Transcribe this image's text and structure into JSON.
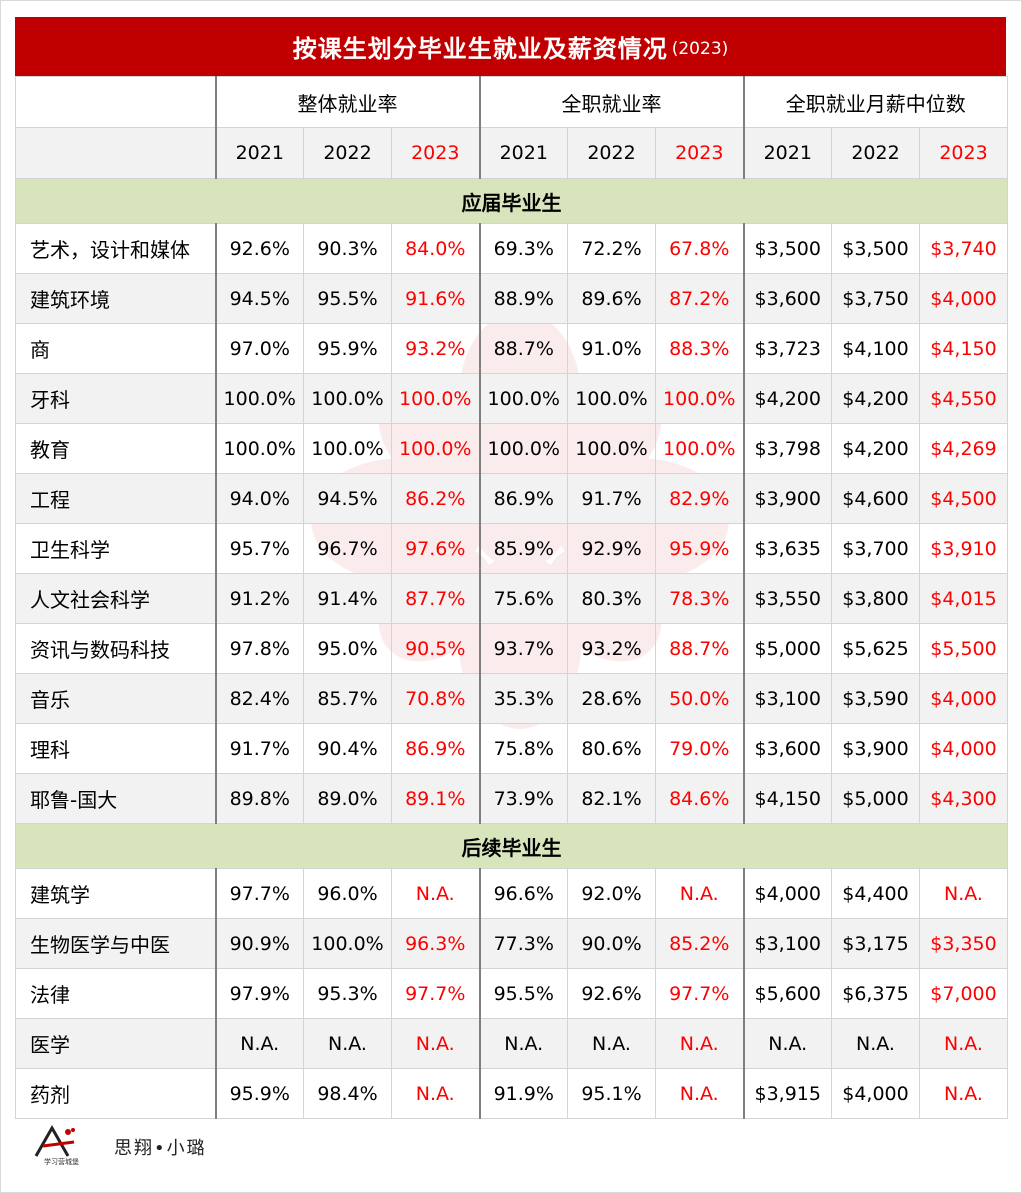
{
  "title": {
    "main": "按课生划分毕业生就业及薪资情况",
    "year": "(2023)"
  },
  "groups": [
    "整体就业率",
    "全职就业率",
    "全职就业月薪中位数"
  ],
  "years": [
    "2021",
    "2022",
    "2023"
  ],
  "sections": [
    {
      "name": "应届毕业生",
      "rows": [
        {
          "label": "艺术，设计和媒体",
          "values": [
            "92.6%",
            "90.3%",
            "84.0%",
            "69.3%",
            "72.2%",
            "67.8%",
            "$3,500",
            "$3,500",
            "$3,740"
          ]
        },
        {
          "label": "建筑环境",
          "values": [
            "94.5%",
            "95.5%",
            "91.6%",
            "88.9%",
            "89.6%",
            "87.2%",
            "$3,600",
            "$3,750",
            "$4,000"
          ]
        },
        {
          "label": "商",
          "values": [
            "97.0%",
            "95.9%",
            "93.2%",
            "88.7%",
            "91.0%",
            "88.3%",
            "$3,723",
            "$4,100",
            "$4,150"
          ]
        },
        {
          "label": "牙科",
          "values": [
            "100.0%",
            "100.0%",
            "100.0%",
            "100.0%",
            "100.0%",
            "100.0%",
            "$4,200",
            "$4,200",
            "$4,550"
          ]
        },
        {
          "label": "教育",
          "values": [
            "100.0%",
            "100.0%",
            "100.0%",
            "100.0%",
            "100.0%",
            "100.0%",
            "$3,798",
            "$4,200",
            "$4,269"
          ]
        },
        {
          "label": "工程",
          "values": [
            "94.0%",
            "94.5%",
            "86.2%",
            "86.9%",
            "91.7%",
            "82.9%",
            "$3,900",
            "$4,600",
            "$4,500"
          ]
        },
        {
          "label": "卫生科学",
          "values": [
            "95.7%",
            "96.7%",
            "97.6%",
            "85.9%",
            "92.9%",
            "95.9%",
            "$3,635",
            "$3,700",
            "$3,910"
          ]
        },
        {
          "label": "人文社会科学",
          "values": [
            "91.2%",
            "91.4%",
            "87.7%",
            "75.6%",
            "80.3%",
            "78.3%",
            "$3,550",
            "$3,800",
            "$4,015"
          ]
        },
        {
          "label": "资讯与数码科技",
          "values": [
            "97.8%",
            "95.0%",
            "90.5%",
            "93.7%",
            "93.2%",
            "88.7%",
            "$5,000",
            "$5,625",
            "$5,500"
          ]
        },
        {
          "label": "音乐",
          "values": [
            "82.4%",
            "85.7%",
            "70.8%",
            "35.3%",
            "28.6%",
            "50.0%",
            "$3,100",
            "$3,590",
            "$4,000"
          ]
        },
        {
          "label": "理科",
          "values": [
            "91.7%",
            "90.4%",
            "86.9%",
            "75.8%",
            "80.6%",
            "79.0%",
            "$3,600",
            "$3,900",
            "$4,000"
          ]
        },
        {
          "label": "耶鲁-国大",
          "values": [
            "89.8%",
            "89.0%",
            "89.1%",
            "73.9%",
            "82.1%",
            "84.6%",
            "$4,150",
            "$5,000",
            "$4,300"
          ]
        }
      ]
    },
    {
      "name": "后续毕业生",
      "rows": [
        {
          "label": "建筑学",
          "values": [
            "97.7%",
            "96.0%",
            "N.A.",
            "96.6%",
            "92.0%",
            "N.A.",
            "$4,000",
            "$4,400",
            "N.A."
          ]
        },
        {
          "label": "生物医学与中医",
          "values": [
            "90.9%",
            "100.0%",
            "96.3%",
            "77.3%",
            "90.0%",
            "85.2%",
            "$3,100",
            "$3,175",
            "$3,350"
          ]
        },
        {
          "label": "法律",
          "values": [
            "97.9%",
            "95.3%",
            "97.7%",
            "95.5%",
            "92.6%",
            "97.7%",
            "$5,600",
            "$6,375",
            "$7,000"
          ]
        },
        {
          "label": "医学",
          "values": [
            "N.A.",
            "N.A.",
            "N.A.",
            "N.A.",
            "N.A.",
            "N.A.",
            "N.A.",
            "N.A.",
            "N.A."
          ]
        },
        {
          "label": "药剂",
          "values": [
            "95.9%",
            "98.4%",
            "N.A.",
            "91.9%",
            "95.1%",
            "N.A.",
            "$3,915",
            "$4,000",
            "N.A."
          ]
        }
      ]
    }
  ],
  "footer": {
    "logo_text": "学习营城堡",
    "author": "思翔•小璐"
  },
  "colors": {
    "title_bg": "#c00000",
    "highlight": "#ff0000",
    "section_bg": "#d8e4bc",
    "alt_row": "#f2f2f2"
  }
}
